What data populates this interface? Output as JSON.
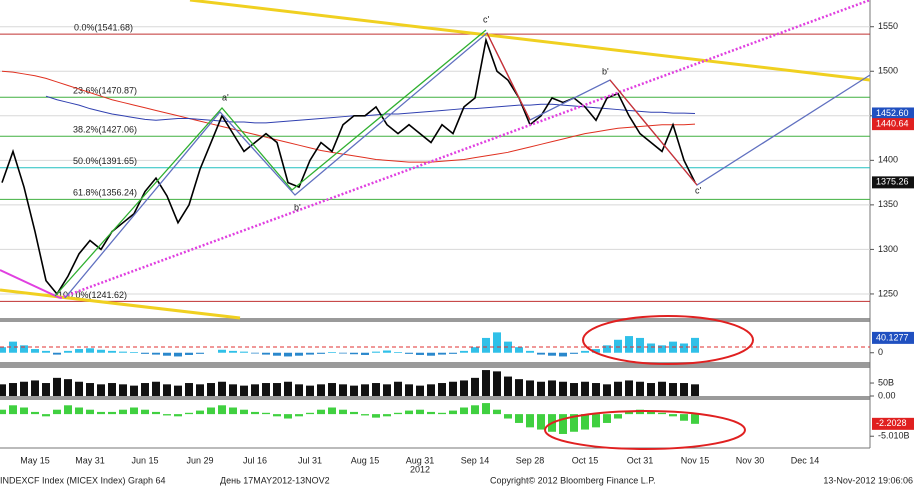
{
  "chart_data": [
    {
      "type": "line",
      "categories": [
        null,
        null,
        null,
        "May 15",
        null,
        null,
        null,
        null,
        "May 31",
        null,
        null,
        null,
        null,
        "Jun 15",
        null,
        null,
        null,
        null,
        "Jun 29",
        null,
        null,
        null,
        null,
        "Jul 16",
        null,
        null,
        null,
        null,
        "Jul 31",
        null,
        null,
        null,
        null,
        "Aug 15",
        null,
        null,
        null,
        null,
        "Aug 31",
        null,
        null,
        null,
        null,
        "Sep 14",
        null,
        null,
        null,
        null,
        "Sep 28",
        null,
        null,
        null,
        null,
        "Oct 15",
        null,
        null,
        null,
        null,
        "Oct 31",
        null,
        null,
        null,
        null,
        "Nov 15",
        null,
        null,
        null,
        null,
        "Nov 30",
        null,
        null,
        null,
        null,
        "Dec 14",
        null
      ],
      "year_label": "2012",
      "series": [
        {
          "color": "#e03020",
          "values": [
            1500,
            1499,
            1497,
            1495,
            1492,
            1488,
            1484,
            1480,
            1476,
            1472,
            1468,
            1465,
            1462,
            1459,
            1456,
            1453,
            1450,
            1447,
            1444,
            1441,
            1438,
            1435,
            1432,
            1429,
            1426,
            1423,
            1420,
            1417,
            1414,
            1411,
            1409,
            1407,
            1405,
            1403,
            1401,
            1400,
            1399,
            1398,
            1398,
            1398,
            1399,
            1400,
            1401,
            1403,
            1405,
            1407,
            1409,
            1412,
            1415,
            1418,
            1421,
            1424,
            1427,
            1430,
            1432,
            1434,
            1436,
            1437,
            1438,
            1439,
            1440,
            1440,
            1440,
            1440.64,
            null,
            null,
            null,
            null,
            null,
            null,
            null,
            null,
            null,
            null,
            null
          ]
        },
        {
          "color": "#3040b0",
          "values": [
            null,
            null,
            null,
            null,
            1472,
            1468,
            1465,
            1462,
            1458,
            1455,
            1452,
            1450,
            1448,
            1446,
            1445,
            1446,
            1447,
            1447,
            1446,
            1445,
            1444,
            1443,
            1443,
            1442,
            1442,
            1443,
            1444,
            1445,
            1446,
            1447,
            1448,
            1449,
            1450,
            1450,
            1451,
            1452,
            1452,
            1453,
            1454,
            1455,
            1456,
            1457,
            1458,
            1458,
            1459,
            1460,
            1461,
            1462,
            1462,
            1463,
            1463,
            1462,
            1461,
            1460,
            1459,
            1458,
            1457,
            1456,
            1455,
            1454,
            1454,
            1453,
            1453,
            1452.6,
            null,
            null,
            null,
            null,
            null,
            null,
            null,
            null,
            null,
            null,
            null
          ]
        },
        {
          "color": "#000000",
          "values": [
            1375,
            1410,
            1370,
            1320,
            1265,
            1250,
            1270,
            1295,
            1310,
            1300,
            1320,
            1330,
            1340,
            1365,
            1380,
            1360,
            1330,
            1350,
            1390,
            1420,
            1450,
            1430,
            1410,
            1420,
            1430,
            1420,
            1375,
            1370,
            1400,
            1420,
            1410,
            1440,
            1450,
            1450,
            1460,
            1440,
            1430,
            1440,
            1430,
            1420,
            1440,
            1430,
            1460,
            1470,
            1535,
            1500,
            1490,
            1470,
            1440,
            1450,
            1470,
            1465,
            1470,
            1460,
            1445,
            1470,
            1475,
            1450,
            1430,
            1420,
            1410,
            1440,
            1400,
            1375.26,
            null,
            null,
            null,
            null,
            null,
            null,
            null,
            null,
            null,
            null,
            null
          ]
        }
      ],
      "ylim": [
        1223,
        1580
      ],
      "yticks": [
        1250,
        1300,
        1350,
        1400,
        1450,
        1500,
        1550
      ],
      "grid": true,
      "levels": [
        {
          "value": 1541.68,
          "label": "0.0%(1541.68)",
          "color": "#c03030"
        },
        {
          "value": 1470.87,
          "label": "23.6%(1470.87)",
          "color": "#40b040"
        },
        {
          "value": 1427.06,
          "label": "38.2%(1427.06)",
          "color": "#40b040"
        },
        {
          "value": 1391.65,
          "label": "50.0%(1391.65)",
          "color": "#20c0c0"
        },
        {
          "value": 1356.24,
          "label": "61.8%(1356.24)",
          "color": "#40b040"
        },
        {
          "value": 1241.62,
          "label": "100.0%(1241.62)",
          "color": "#c03030"
        }
      ],
      "tags": [
        {
          "value": 1452.6,
          "label": "1452.60",
          "color": "#2050c0"
        },
        {
          "value": 1440.64,
          "label": "1440.64",
          "color": "#e02020"
        },
        {
          "value": 1375.26,
          "label": "1375.26",
          "color": "#111111"
        }
      ],
      "annotations": [
        "a'",
        "b'",
        "c'",
        "b'",
        "c'"
      ]
    },
    {
      "type": "bar",
      "values": [
        15,
        30,
        20,
        10,
        5,
        -5,
        5,
        10,
        12,
        8,
        5,
        3,
        2,
        -3,
        -5,
        -8,
        -10,
        -6,
        -3,
        0,
        8,
        5,
        3,
        -2,
        -5,
        -8,
        -10,
        -8,
        -5,
        -3,
        2,
        -2,
        -4,
        -6,
        3,
        6,
        2,
        -3,
        -6,
        -8,
        -5,
        -3,
        5,
        15,
        40,
        55,
        30,
        15,
        5,
        -5,
        -8,
        -10,
        -3,
        5,
        10,
        20,
        35,
        45,
        40,
        25,
        20,
        30,
        25,
        40.1277,
        null,
        null,
        null,
        null,
        null,
        null,
        null,
        null,
        null,
        null,
        null
      ],
      "pos_color": "#30c0e8",
      "neg_color": "#2a88cc",
      "ylim": [
        -25,
        83
      ],
      "yticks": [
        0
      ],
      "tags": [
        {
          "value": 40.1277,
          "label": "40.1277",
          "color": "#2050c0"
        }
      ]
    },
    {
      "type": "bar",
      "values": [
        45,
        50,
        55,
        60,
        50,
        70,
        65,
        55,
        50,
        45,
        50,
        45,
        40,
        50,
        55,
        45,
        40,
        50,
        45,
        50,
        55,
        45,
        40,
        45,
        50,
        50,
        55,
        45,
        40,
        45,
        50,
        45,
        40,
        45,
        50,
        45,
        55,
        45,
        40,
        45,
        50,
        55,
        60,
        70,
        100,
        95,
        75,
        65,
        60,
        55,
        60,
        55,
        50,
        55,
        50,
        45,
        55,
        60,
        55,
        50,
        55,
        50,
        50,
        45,
        null,
        null,
        null,
        null,
        null,
        null,
        null,
        null,
        null,
        null,
        null
      ],
      "pos_color": "#111111",
      "neg_color": "#111111",
      "ylim": [
        0,
        108
      ],
      "yticks": [
        {
          "value": 0,
          "label": "0.00"
        },
        {
          "value": 50,
          "label": "50B"
        }
      ],
      "tags": []
    },
    {
      "type": "bar",
      "values": [
        1,
        2,
        1.5,
        0.5,
        -0.5,
        1,
        2,
        1.5,
        1,
        0.5,
        0.5,
        1,
        1.5,
        1,
        0.5,
        -0.3,
        -0.5,
        0.3,
        0.8,
        1.5,
        2,
        1.5,
        1,
        0.5,
        0.3,
        -0.5,
        -1,
        -0.5,
        0.3,
        1,
        1.5,
        1,
        0.5,
        -0.3,
        -0.8,
        -0.5,
        0.3,
        0.8,
        1,
        0.5,
        0.3,
        0.8,
        1.5,
        2,
        2.5,
        1,
        -1,
        -2,
        -3,
        -3.5,
        -4,
        -4.5,
        -4,
        -3.5,
        -3,
        -2,
        -1,
        0.5,
        1,
        0.5,
        0.3,
        -0.5,
        -1.5,
        -2.2028,
        null,
        null,
        null,
        null,
        null,
        null,
        null,
        null,
        null,
        null,
        null
      ],
      "pos_color": "#40d040",
      "neg_color": "#40d040",
      "ylim": [
        -7,
        3.2
      ],
      "yticks": [
        {
          "value": -5.01,
          "label": "-5.010B"
        }
      ],
      "tags": [
        {
          "value": -2.2028,
          "label": "-2.2028",
          "color": "#e02020"
        }
      ]
    }
  ],
  "footer": {
    "left": "INDEXCF Index (MICEX Index) Graph 64",
    "range": "День 17MAY2012-13NOV2",
    "copyright": "Copyright© 2012 Bloomberg Finance L.P.",
    "timestamp": "13-Nov-2012 19:06:06"
  }
}
